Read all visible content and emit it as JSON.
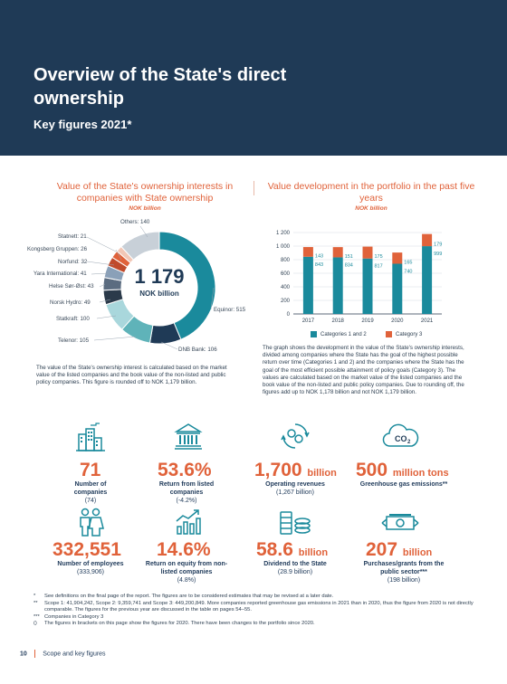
{
  "header": {
    "title": "Overview of the State's direct ownership",
    "subtitle": "Key figures 2021*"
  },
  "left_section": {
    "title": "Value of the State's ownership interests in companies with State ownership",
    "unit": "NOK billion",
    "center_value": "1 179",
    "center_unit": "NOK billion",
    "description": "The value of the State's ownership interest is calculated based on the market value of the listed companies and the book value of the non-listed and public policy companies. This figure is rounded off to NOK 1,179 billion."
  },
  "right_section": {
    "title": "Value development in the portfolio in the past five years",
    "unit": "NOK billion",
    "description": "The graph shows the development in the value of the State's ownership interests, divided among companies where the State has the goal of the highest possible return over time (Categories 1 and 2) and the companies where the State has the goal of the most efficient possible attainment of policy goals (Category 3). The values are calculated based on the market value of the listed companies and the book value of the non-listed and public policy companies. Due to rounding off, the figures add up to NOK 1,178 billion and not NOK 1,179 billion."
  },
  "chart_data": [
    {
      "type": "pie",
      "title": "Value of the State's ownership interests in companies with State ownership",
      "unit": "NOK billion",
      "slices": [
        {
          "label": "Equinor: 515",
          "value": 515,
          "color": "#1a8a9c"
        },
        {
          "label": "DNB Bank: 106",
          "value": 106,
          "color": "#1f3a56"
        },
        {
          "label": "Telenor: 105",
          "value": 105,
          "color": "#5fb3b9"
        },
        {
          "label": "Statkraft: 100",
          "value": 100,
          "color": "#a9d7dc"
        },
        {
          "label": "Norsk Hydro: 49",
          "value": 49,
          "color": "#2b3a4a"
        },
        {
          "label": "Helse Sør-Øst: 43",
          "value": 43,
          "color": "#5b6c80"
        },
        {
          "label": "Yara International: 41",
          "value": 41,
          "color": "#8aa0b8"
        },
        {
          "label": "Norfund: 32",
          "value": 32,
          "color": "#c04a2b"
        },
        {
          "label": "Kongsberg Gruppen: 26",
          "value": 26,
          "color": "#e0623a"
        },
        {
          "label": "Statnett: 21",
          "value": 21,
          "color": "#f2c7b6"
        },
        {
          "label": "Others: 140",
          "value": 140,
          "color": "#c8d0d8"
        }
      ]
    },
    {
      "type": "bar",
      "title": "Value development in the portfolio in the past five years",
      "unit": "NOK billion",
      "categories": [
        "2017",
        "2018",
        "2019",
        "2020",
        "2021"
      ],
      "series": [
        {
          "name": "Categories 1 and 2",
          "values": [
            843,
            834,
            817,
            740,
            999
          ],
          "color": "#1a8a9c"
        },
        {
          "name": "Category 3",
          "values": [
            143,
            151,
            175,
            165,
            179
          ],
          "color": "#e0623a"
        }
      ],
      "ylim": [
        0,
        1200
      ],
      "yticks": [
        "0",
        "200",
        "400",
        "600",
        "800",
        "1 000",
        "1 200"
      ]
    }
  ],
  "stats": [
    {
      "value": "71",
      "unit": "",
      "label": "Number of companies",
      "prev": "(74)",
      "icon": "city-icon"
    },
    {
      "value": "53.6%",
      "unit": "",
      "label": "Return from listed companies",
      "prev": "(-4.2%)",
      "icon": "bank-building-icon"
    },
    {
      "value": "1,700",
      "unit": "billion",
      "label": "Operating revenues",
      "prev": "(1,267 billion)",
      "icon": "cycle-money-icon"
    },
    {
      "value": "500",
      "unit": "million tons",
      "label": "Greenhouse gas emissions**",
      "prev": "",
      "icon": "co2-cloud-icon"
    },
    {
      "value": "332,551",
      "unit": "",
      "label": "Number of employees",
      "prev": "(333,906)",
      "icon": "people-icon"
    },
    {
      "value": "14.6%",
      "unit": "",
      "label": "Return on equity from non-listed companies",
      "prev": "(4.8%)",
      "icon": "growth-chart-icon"
    },
    {
      "value": "58.6",
      "unit": "billion",
      "label": "Dividend to the State",
      "prev": "(28.9 billion)",
      "icon": "coins-icon"
    },
    {
      "value": "207",
      "unit": "billion",
      "label": "Purchases/grants from the public sector***",
      "prev": "(198 billion)",
      "icon": "banknote-icon"
    }
  ],
  "footnotes": [
    {
      "mark": "*",
      "text": "See definitions on the final page of the report. The figures are to be considered estimates that may be revised at a later date."
    },
    {
      "mark": "**",
      "text": "Scope 1: 41,904,242, Scope 2: 9,359,741 and Scope 3: 449,200,849. More companies reported greenhouse gas emissions in 2021 than in 2020, thus the figure from 2020 is not directly comparable. The figures for the previous year are discussed in the table on pages 54–55."
    },
    {
      "mark": "***",
      "text": "Companies in Category 3"
    },
    {
      "mark": "()",
      "text": "The figures in brackets on this page show the figures for 2020. There have been changes to the portfolio since 2020."
    }
  ],
  "footer": {
    "page": "10",
    "section": "Scope and key figures"
  },
  "colors": {
    "navy": "#1f3a56",
    "orange": "#e0623a",
    "teal": "#1a8a9c"
  }
}
